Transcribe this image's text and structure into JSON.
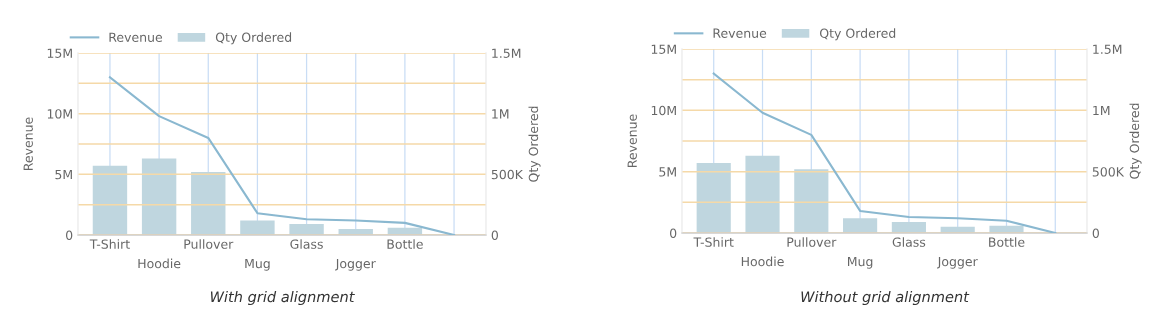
{
  "chart_data": [
    {
      "type": "bar",
      "categories": [
        "T-Shirt",
        "Hoodie",
        "Pullover",
        "Mug",
        "Glass",
        "Jogger",
        "Bottle",
        null
      ],
      "series": [
        {
          "name": "Revenue",
          "type": "line",
          "color": "#8ab8d0",
          "values": [
            13000000,
            9800000,
            8000000,
            1800000,
            1300000,
            1200000,
            1000000,
            0
          ]
        },
        {
          "name": "Qty Ordered",
          "axis": "y2",
          "color": "#bfd6df",
          "values": [
            570000,
            630000,
            520000,
            120000,
            90000,
            50000,
            60000,
            null
          ]
        }
      ],
      "ylabel": "Revenue",
      "y2label": "Qty Ordered",
      "ylim": [
        0,
        15000000
      ],
      "yticks": [
        {
          "value": 0,
          "label": "0"
        },
        {
          "value": 2500000,
          "label": null
        },
        {
          "value": 5000000,
          "label": "5M"
        },
        {
          "value": 7500000,
          "label": null
        },
        {
          "value": 10000000,
          "label": "10M"
        },
        {
          "value": 12500000,
          "label": null
        },
        {
          "value": 15000000,
          "label": "15M"
        }
      ],
      "y2lim": [
        0,
        1500000
      ],
      "y2ticks": [
        {
          "value": 0,
          "label": "0"
        },
        {
          "value": 500000,
          "label": "500K"
        },
        {
          "value": 1000000,
          "label": "1M"
        },
        {
          "value": 1500000,
          "label": "1.5M"
        }
      ],
      "grid": true,
      "legend": "top left",
      "annotations": [
        "With grid alignment"
      ]
    },
    {
      "type": "bar",
      "categories": [
        "T-Shirt",
        "Hoodie",
        "Pullover",
        "Mug",
        "Glass",
        "Jogger",
        "Bottle",
        null
      ],
      "series": [
        {
          "name": "Revenue",
          "type": "line",
          "color": "#8ab8d0",
          "values": [
            13000000,
            9800000,
            8000000,
            1800000,
            1300000,
            1200000,
            1000000,
            0
          ]
        },
        {
          "name": "Qty Ordered",
          "axis": "y2",
          "color": "#bfd6df",
          "values": [
            570000,
            630000,
            520000,
            120000,
            90000,
            50000,
            60000,
            null
          ]
        }
      ],
      "ylabel": "Revenue",
      "y2label": "Qty Ordered",
      "ylim": [
        0,
        15000000
      ],
      "yticks": [
        {
          "value": 0,
          "label": "0"
        },
        {
          "value": 2500000,
          "label": null
        },
        {
          "value": 5000000,
          "label": "5M"
        },
        {
          "value": 7500000,
          "label": null
        },
        {
          "value": 10000000,
          "label": "10M"
        },
        {
          "value": 12500000,
          "label": null
        },
        {
          "value": 15000000,
          "label": "15M"
        }
      ],
      "y2lim": [
        0,
        1500000
      ],
      "y2ticks": [
        {
          "value": 0,
          "label": "0"
        },
        {
          "value": 500000,
          "label": "500K"
        },
        {
          "value": 1000000,
          "label": "1M"
        },
        {
          "value": 1500000,
          "label": "1.5M"
        }
      ],
      "grid": true,
      "legend": "top left",
      "annotations": [
        "Without grid alignment"
      ]
    }
  ]
}
